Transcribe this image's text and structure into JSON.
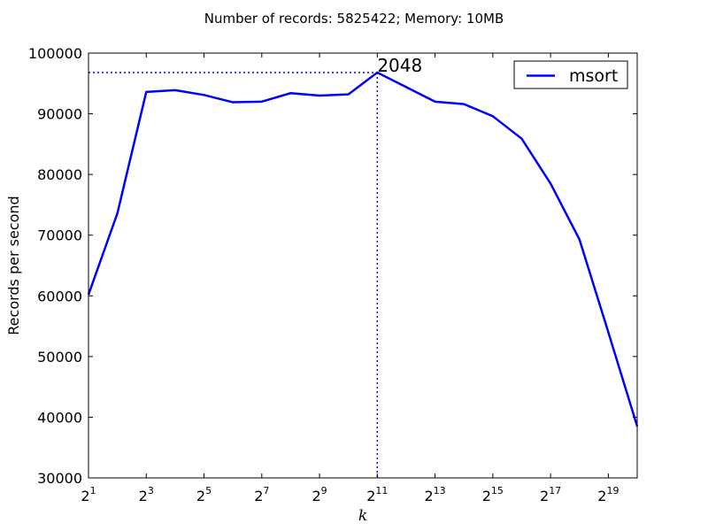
{
  "chart_data": {
    "type": "line",
    "title": "Number of records: 5825422; Memory: 10MB",
    "xlabel": "k",
    "ylabel": "Records per second",
    "xscale": "log2",
    "x": [
      2,
      4,
      8,
      16,
      32,
      64,
      128,
      256,
      512,
      1024,
      2048,
      4096,
      8192,
      16384,
      32768,
      65536,
      131072,
      262144,
      524288,
      1048576
    ],
    "xlim": [
      2,
      1048576
    ],
    "xticks": [
      {
        "base": "2",
        "exp": "1"
      },
      {
        "base": "2",
        "exp": "3"
      },
      {
        "base": "2",
        "exp": "5"
      },
      {
        "base": "2",
        "exp": "7"
      },
      {
        "base": "2",
        "exp": "9"
      },
      {
        "base": "2",
        "exp": "11"
      },
      {
        "base": "2",
        "exp": "13"
      },
      {
        "base": "2",
        "exp": "15"
      },
      {
        "base": "2",
        "exp": "17"
      },
      {
        "base": "2",
        "exp": "19"
      }
    ],
    "ylim": [
      30000,
      100000
    ],
    "yticks": [
      "30000",
      "40000",
      "50000",
      "60000",
      "70000",
      "80000",
      "90000",
      "100000"
    ],
    "grid": false,
    "legend_position": "top-right",
    "series": [
      {
        "name": "msort",
        "color": "#0000ff",
        "values": [
          60200,
          73600,
          93600,
          93900,
          93100,
          91900,
          92000,
          93400,
          93000,
          93200,
          96800,
          94400,
          92000,
          91600,
          89600,
          85900,
          78500,
          69300,
          54000,
          38500
        ]
      }
    ],
    "annotation": {
      "text": "2048",
      "x": 2048,
      "y": 96800
    }
  }
}
